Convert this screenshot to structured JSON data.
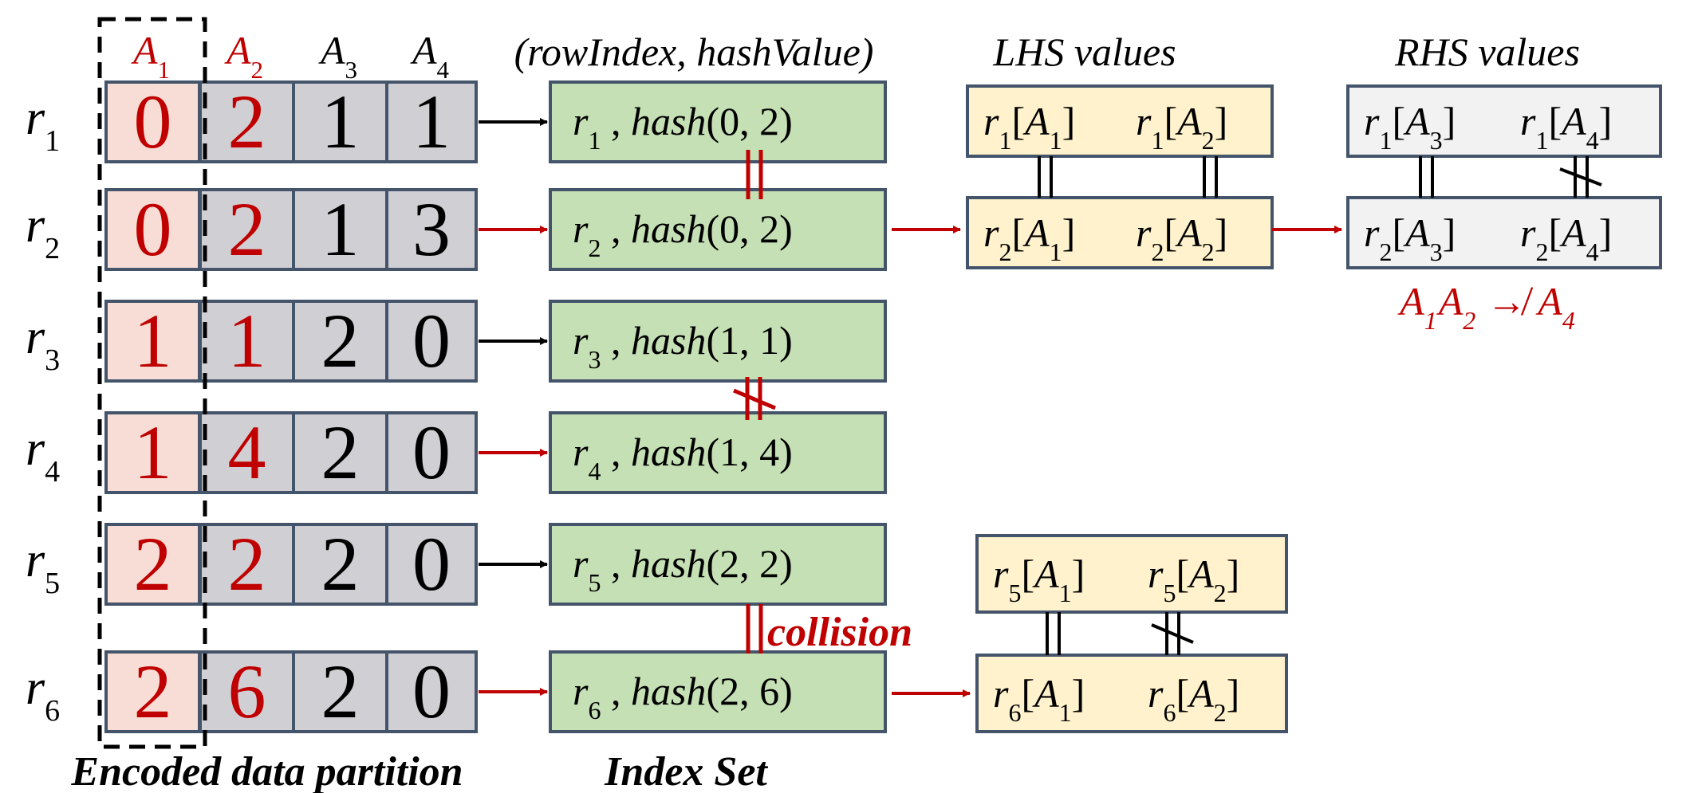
{
  "colors": {
    "red": "#c00000",
    "black": "#000000",
    "frame": "#44546a",
    "cell_a1": "#f7ddd5",
    "cell_gray": "#d0cfd3",
    "index_green": "#c5e0b4",
    "lhs_yellow": "#fff2cc",
    "rhs_gray": "#f2f2f2"
  },
  "column_headers": [
    {
      "letter": "A",
      "sub": "1",
      "color": "red"
    },
    {
      "letter": "A",
      "sub": "2",
      "color": "red"
    },
    {
      "letter": "A",
      "sub": "3",
      "color": "black"
    },
    {
      "letter": "A",
      "sub": "4",
      "color": "black"
    }
  ],
  "rows": [
    {
      "label": "r",
      "sub": "1",
      "values": [
        "0",
        "2",
        "1",
        "1"
      ],
      "arrow_color": "black",
      "index_left": "r",
      "index_sub": "1",
      "hash_args": "(0, 2)"
    },
    {
      "label": "r",
      "sub": "2",
      "values": [
        "0",
        "2",
        "1",
        "3"
      ],
      "arrow_color": "red",
      "index_left": "r",
      "index_sub": "2",
      "hash_args": "(0, 2)"
    },
    {
      "label": "r",
      "sub": "3",
      "values": [
        "1",
        "1",
        "2",
        "0"
      ],
      "arrow_color": "black",
      "index_left": "r",
      "index_sub": "3",
      "hash_args": "(1, 1)"
    },
    {
      "label": "r",
      "sub": "4",
      "values": [
        "1",
        "4",
        "2",
        "0"
      ],
      "arrow_color": "red",
      "index_left": "r",
      "index_sub": "4",
      "hash_args": "(1, 4)"
    },
    {
      "label": "r",
      "sub": "5",
      "values": [
        "2",
        "2",
        "2",
        "0"
      ],
      "arrow_color": "black",
      "index_left": "r",
      "index_sub": "5",
      "hash_args": "(2, 2)"
    },
    {
      "label": "r",
      "sub": "6",
      "values": [
        "2",
        "6",
        "2",
        "0"
      ],
      "arrow_color": "red",
      "index_left": "r",
      "index_sub": "6",
      "hash_args": "(2, 6)"
    }
  ],
  "index_header": "(rowIndex, hashValue)",
  "hash_word": "hash",
  "lhs_title": "LHS values",
  "rhs_title": "RHS values",
  "lhs_boxes": [
    {
      "row": "1",
      "items": [
        {
          "r": "1",
          "a": "1"
        },
        {
          "r": "1",
          "a": "2"
        }
      ]
    },
    {
      "row": "2",
      "items": [
        {
          "r": "2",
          "a": "1"
        },
        {
          "r": "2",
          "a": "2"
        }
      ]
    },
    {
      "row": "5",
      "items": [
        {
          "r": "5",
          "a": "1"
        },
        {
          "r": "5",
          "a": "2"
        }
      ]
    },
    {
      "row": "6",
      "items": [
        {
          "r": "6",
          "a": "1"
        },
        {
          "r": "6",
          "a": "2"
        }
      ]
    }
  ],
  "rhs_boxes": [
    {
      "row": "1",
      "items": [
        {
          "r": "1",
          "a": "3"
        },
        {
          "r": "1",
          "a": "4"
        }
      ]
    },
    {
      "row": "2",
      "items": [
        {
          "r": "2",
          "a": "3"
        },
        {
          "r": "2",
          "a": "4"
        }
      ]
    }
  ],
  "non_fd": {
    "lhs": [
      "1",
      "2"
    ],
    "symbol": "↛",
    "rhs": "4"
  },
  "collision_label": "collision",
  "caption_left": "Encoded data partition",
  "caption_right": "Index Set"
}
